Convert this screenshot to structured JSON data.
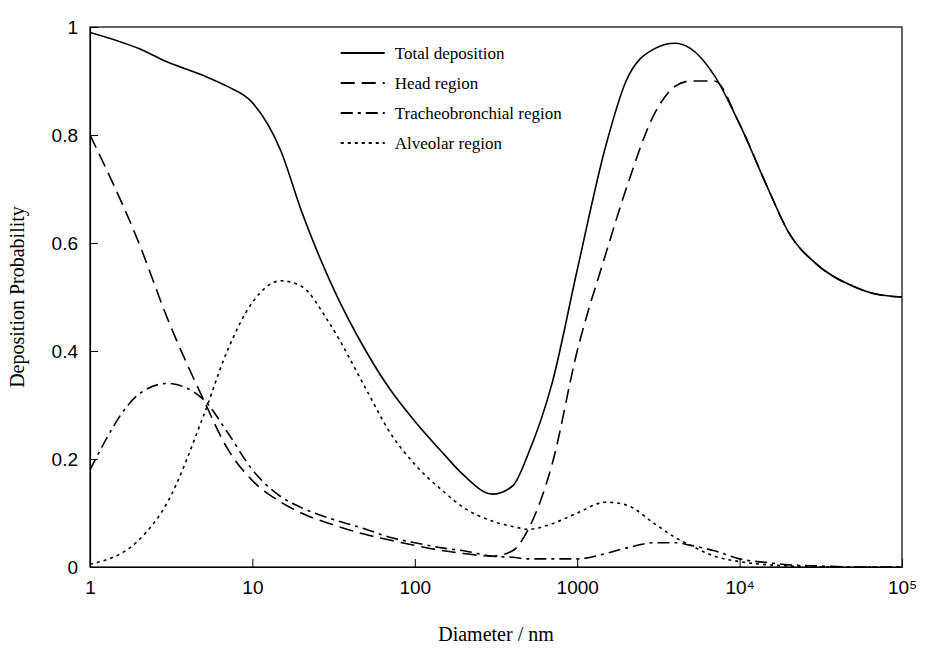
{
  "chart_data": {
    "type": "line",
    "x_label": "Diameter / nm",
    "y_label": "Deposition Probability",
    "log": "x",
    "legend": "top",
    "x": [
      1,
      2,
      3,
      5,
      7,
      10,
      15,
      20,
      30,
      50,
      70,
      100,
      150,
      200,
      300,
      400,
      500,
      700,
      1000,
      1500,
      2000,
      3000,
      4000,
      5000,
      7000,
      10000,
      15000,
      20000,
      30000,
      50000,
      70000,
      100000
    ],
    "xlim": [
      1,
      100000
    ],
    "xticks": [
      1,
      10,
      100,
      1000,
      {
        "value": 10000,
        "label": "10⁴"
      },
      {
        "value": 100000,
        "label": "10⁵"
      }
    ],
    "ylim": [
      0,
      1
    ],
    "yticks": [
      0,
      0.2,
      0.4,
      0.6,
      0.8,
      1
    ],
    "series": [
      {
        "name": "Total deposition",
        "color": "#000000",
        "line_style": "solid",
        "values": [
          0.99,
          0.96,
          0.935,
          0.91,
          0.89,
          0.86,
          0.77,
          0.66,
          0.53,
          0.4,
          0.33,
          0.27,
          0.21,
          0.17,
          0.135,
          0.15,
          0.21,
          0.34,
          0.55,
          0.78,
          0.9,
          0.96,
          0.97,
          0.96,
          0.91,
          0.82,
          0.7,
          0.62,
          0.56,
          0.52,
          0.505,
          0.5
        ]
      },
      {
        "name": "Head region",
        "color": "#000000",
        "line_style": "dashed",
        "values": [
          0.8,
          0.6,
          0.46,
          0.31,
          0.22,
          0.16,
          0.12,
          0.1,
          0.08,
          0.06,
          0.05,
          0.04,
          0.03,
          0.025,
          0.02,
          0.03,
          0.07,
          0.19,
          0.4,
          0.58,
          0.7,
          0.84,
          0.89,
          0.9,
          0.9,
          0.82,
          0.7,
          0.62,
          0.56,
          0.52,
          0.505,
          0.5
        ]
      },
      {
        "name": "Tracheobronchial region",
        "color": "#000000",
        "line_style": "dashdot",
        "values": [
          0.18,
          0.32,
          0.34,
          0.31,
          0.25,
          0.18,
          0.13,
          0.11,
          0.09,
          0.07,
          0.055,
          0.045,
          0.035,
          0.03,
          0.02,
          0.018,
          0.015,
          0.015,
          0.015,
          0.025,
          0.035,
          0.045,
          0.045,
          0.04,
          0.03,
          0.015,
          0.008,
          0.004,
          0.002,
          0,
          0,
          0
        ]
      },
      {
        "name": "Alveolar region",
        "color": "#000000",
        "line_style": "dotted",
        "values": [
          0.005,
          0.05,
          0.12,
          0.28,
          0.4,
          0.49,
          0.53,
          0.52,
          0.45,
          0.33,
          0.25,
          0.19,
          0.14,
          0.11,
          0.085,
          0.075,
          0.07,
          0.08,
          0.1,
          0.12,
          0.115,
          0.08,
          0.055,
          0.04,
          0.02,
          0.01,
          0.004,
          0.002,
          0,
          0,
          0,
          0
        ]
      }
    ]
  }
}
